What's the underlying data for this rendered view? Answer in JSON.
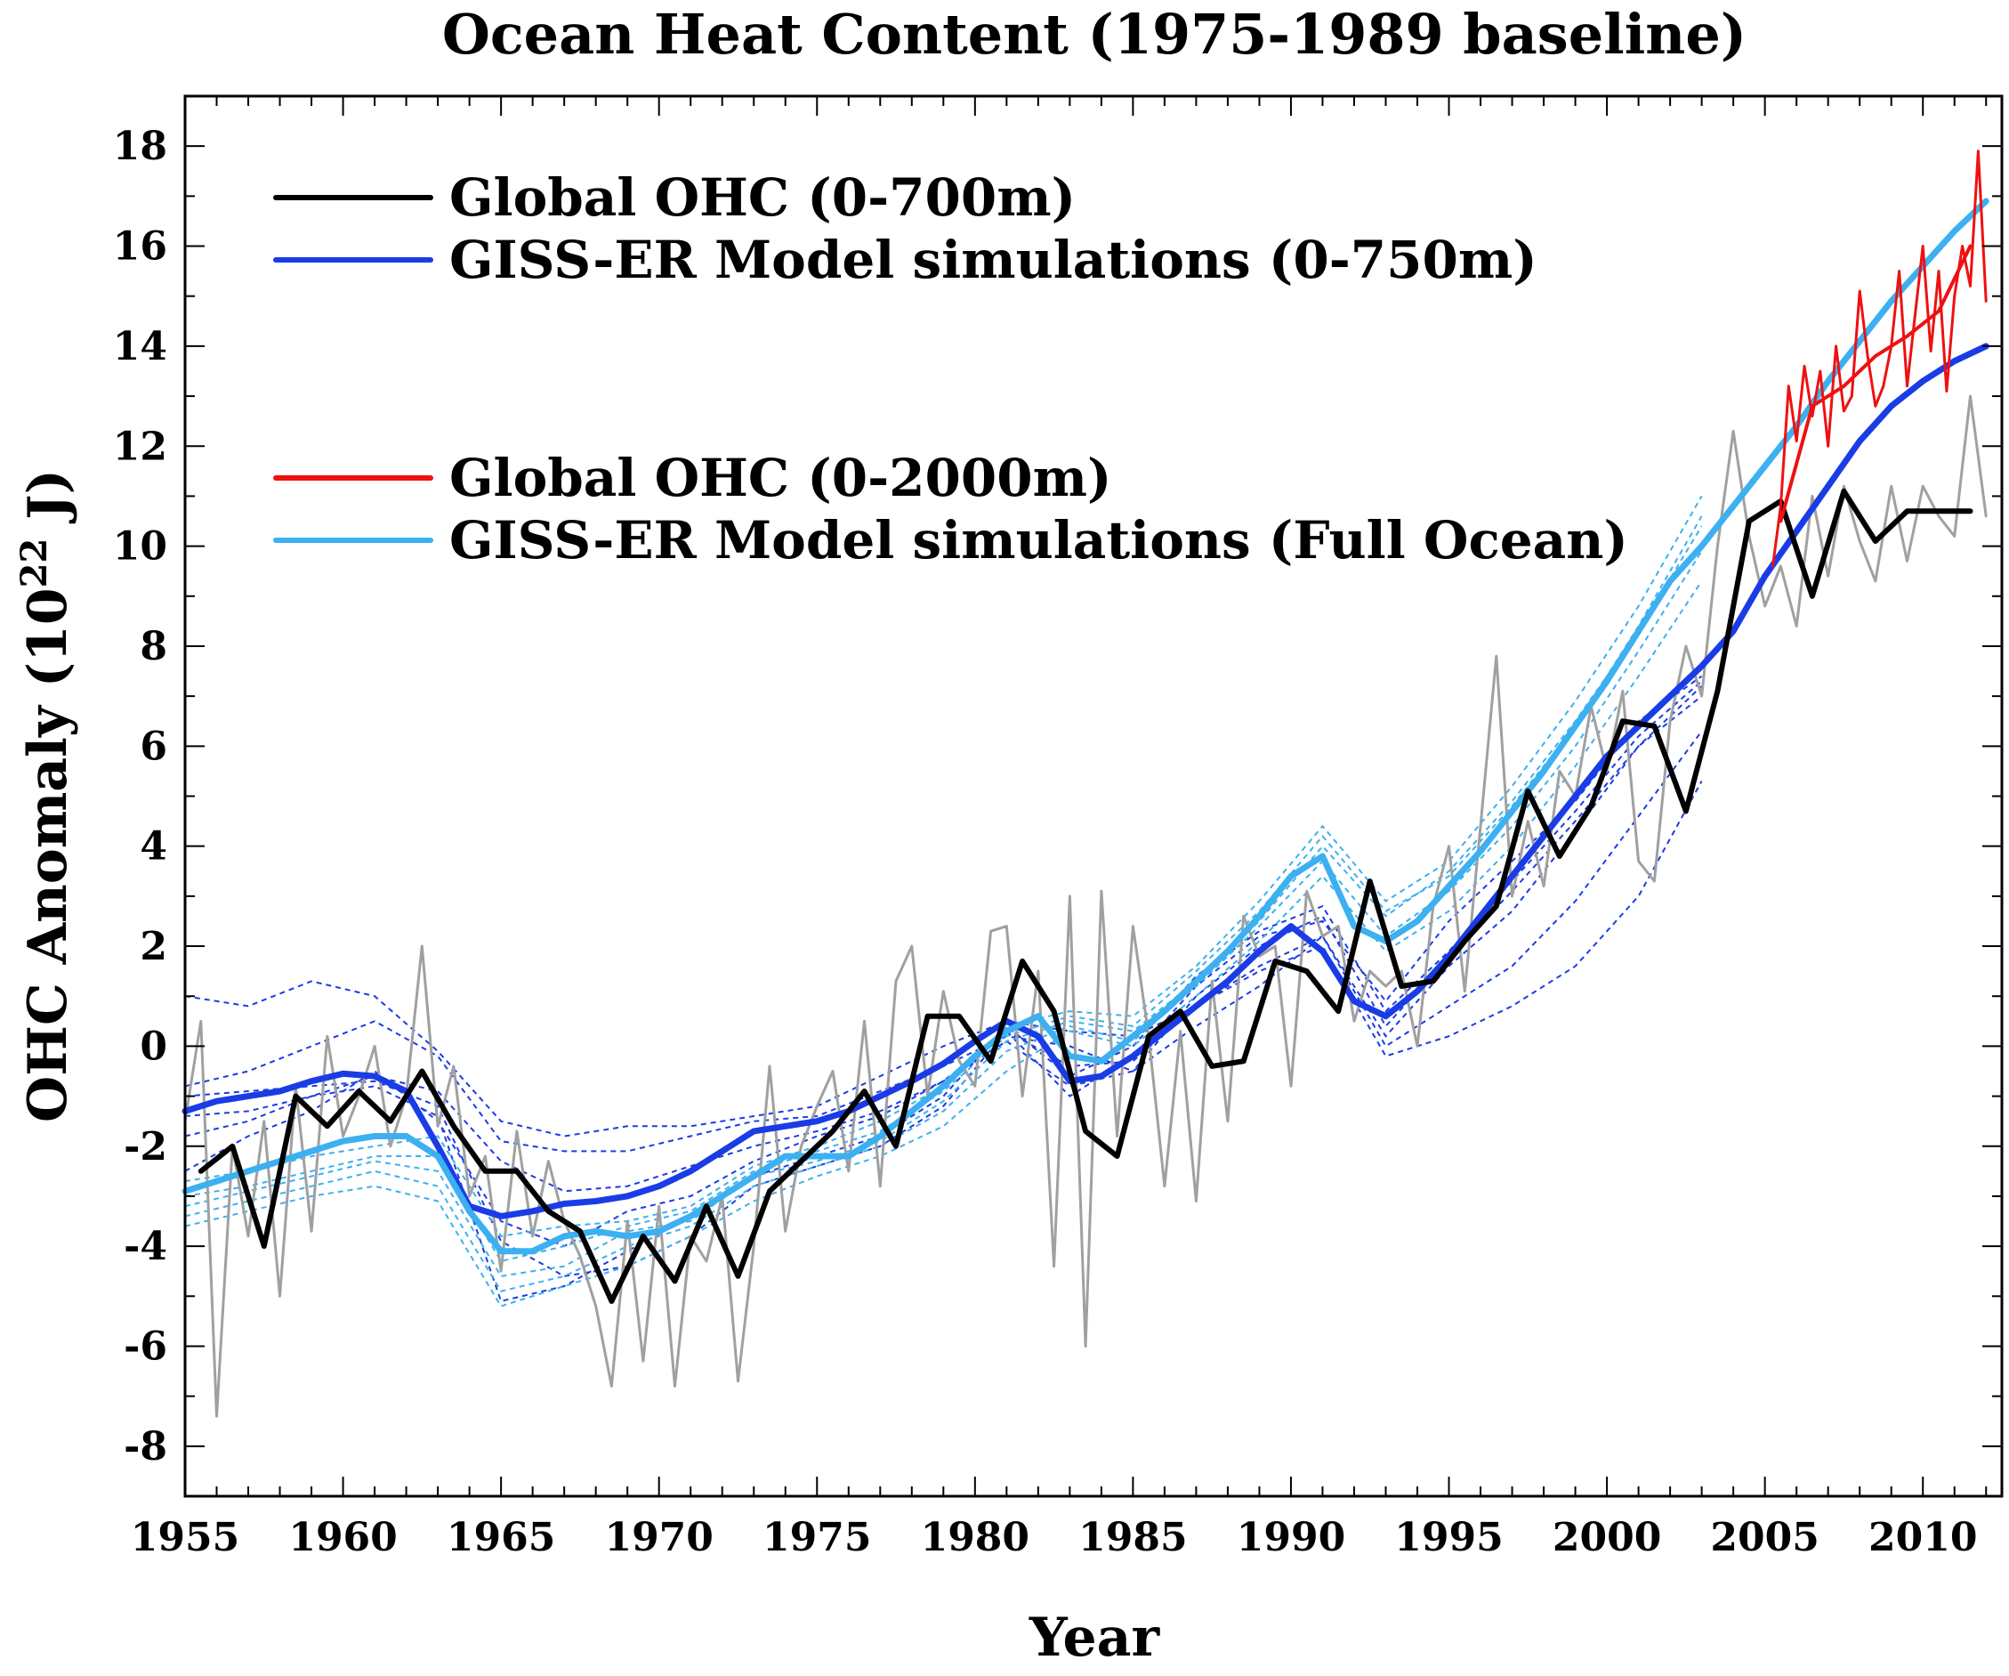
{
  "chart_data": {
    "type": "line",
    "title": "Ocean Heat Content (1975-1989 baseline)",
    "xlabel": "Year",
    "ylabel_main": "OHC Anomaly (10",
    "ylabel_sup": "22",
    "ylabel_tail": " J)",
    "xlim": [
      1955,
      2012.5
    ],
    "ylim": [
      -9,
      19
    ],
    "x_ticks": [
      1955,
      1960,
      1965,
      1970,
      1975,
      1980,
      1985,
      1990,
      1995,
      2000,
      2005,
      2010
    ],
    "y_ticks": [
      -8,
      -6,
      -4,
      -2,
      0,
      2,
      4,
      6,
      8,
      10,
      12,
      14,
      16,
      18
    ],
    "grid": false,
    "legend_placement": "top-left",
    "legend": [
      {
        "label": "Global OHC (0-700m)",
        "color": "#000000"
      },
      {
        "label": "GISS-ER Model simulations (0-750m)",
        "color": "#1a3ce6"
      },
      {
        "label": "Global OHC (0-2000m)",
        "color": "#ee1111"
      },
      {
        "label": "GISS-ER Model simulations (Full Ocean)",
        "color": "#3cb0f0"
      }
    ],
    "series": [
      {
        "legend_index": 0,
        "style": "annual",
        "color": "#000000",
        "x": [
          1955.5,
          1956.5,
          1957.5,
          1958.5,
          1959.5,
          1960.5,
          1961.5,
          1962.5,
          1963.5,
          1964.5,
          1965.5,
          1966.5,
          1967.5,
          1968.5,
          1969.5,
          1970.5,
          1971.5,
          1972.5,
          1973.5,
          1974.5,
          1975.5,
          1976.5,
          1977.5,
          1978.5,
          1979.5,
          1980.5,
          1981.5,
          1982.5,
          1983.5,
          1984.5,
          1985.5,
          1986.5,
          1987.5,
          1988.5,
          1989.5,
          1990.5,
          1991.5,
          1992.5,
          1993.5,
          1994.5,
          1995.5,
          1996.5,
          1997.5,
          1998.5,
          1999.5,
          2000.5,
          2001.5,
          2002.5,
          2003.5,
          2004.5,
          2005.5,
          2006.5,
          2007.5,
          2008.5,
          2009.5,
          2010.5,
          2011.5
        ],
        "y": [
          -2.5,
          -2.0,
          -4.0,
          -1.0,
          -1.6,
          -0.9,
          -1.5,
          -0.5,
          -1.6,
          -2.5,
          -2.5,
          -3.3,
          -3.7,
          -5.1,
          -3.8,
          -4.7,
          -3.2,
          -4.6,
          -2.9,
          -2.3,
          -1.7,
          -0.9,
          -2.0,
          0.6,
          0.6,
          -0.3,
          1.7,
          0.7,
          -1.7,
          -2.2,
          0.2,
          0.7,
          -0.4,
          -0.3,
          1.7,
          1.5,
          0.7,
          3.3,
          1.2,
          1.3,
          2.1,
          2.8,
          5.1,
          3.8,
          4.8,
          6.5,
          6.4,
          4.7,
          7.1,
          10.5,
          10.9,
          9.0,
          11.1,
          10.1,
          10.7,
          10.7,
          10.7
        ]
      },
      {
        "legend_index": 0,
        "style": "seasonal",
        "color": "#a0a0a0",
        "x": [
          1955.0,
          1955.5,
          1956.0,
          1956.5,
          1957.0,
          1957.5,
          1958.0,
          1958.5,
          1959.0,
          1959.5,
          1960.0,
          1960.5,
          1961.0,
          1961.5,
          1962.0,
          1962.5,
          1963.0,
          1963.5,
          1964.0,
          1964.5,
          1965.0,
          1965.5,
          1966.0,
          1966.5,
          1967.0,
          1967.5,
          1968.0,
          1968.5,
          1969.0,
          1969.5,
          1970.0,
          1970.5,
          1971.0,
          1971.5,
          1972.0,
          1972.5,
          1973.0,
          1973.5,
          1974.0,
          1974.5,
          1975.0,
          1975.5,
          1976.0,
          1976.5,
          1977.0,
          1977.5,
          1978.0,
          1978.5,
          1979.0,
          1979.5,
          1980.0,
          1980.5,
          1981.0,
          1981.5,
          1982.0,
          1982.5,
          1983.0,
          1983.5,
          1984.0,
          1984.5,
          1985.0,
          1985.5,
          1986.0,
          1986.5,
          1987.0,
          1987.5,
          1988.0,
          1988.5,
          1989.0,
          1989.5,
          1990.0,
          1990.5,
          1991.0,
          1991.5,
          1992.0,
          1992.5,
          1993.0,
          1993.5,
          1994.0,
          1994.5,
          1995.0,
          1995.5,
          1996.0,
          1996.5,
          1997.0,
          1997.5,
          1998.0,
          1998.5,
          1999.0,
          1999.5,
          2000.0,
          2000.5,
          2001.0,
          2001.5,
          2002.0,
          2002.5,
          2003.0,
          2003.5,
          2004.0,
          2004.5,
          2005.0,
          2005.5,
          2006.0,
          2006.5,
          2007.0,
          2007.5,
          2008.0,
          2008.5,
          2009.0,
          2009.5,
          2010.0,
          2010.5,
          2011.0,
          2011.5,
          2012.0
        ],
        "y": [
          -1.5,
          0.5,
          -7.4,
          -2.0,
          -3.8,
          -1.5,
          -5.0,
          -0.8,
          -3.7,
          0.2,
          -1.8,
          -1.0,
          0.0,
          -2.0,
          -1.0,
          2.0,
          -1.6,
          -0.4,
          -3.0,
          -2.2,
          -4.5,
          -1.7,
          -3.8,
          -2.3,
          -3.5,
          -4.2,
          -5.2,
          -6.8,
          -3.5,
          -6.3,
          -3.2,
          -6.8,
          -3.8,
          -4.3,
          -3.0,
          -6.7,
          -4.0,
          -0.4,
          -3.7,
          -2.0,
          -1.2,
          -0.5,
          -2.5,
          0.5,
          -2.8,
          1.3,
          2.0,
          -1.0,
          1.1,
          -0.3,
          -0.8,
          2.3,
          2.4,
          -1.0,
          1.5,
          -4.4,
          3.0,
          -6.0,
          3.1,
          -1.8,
          2.4,
          0.2,
          -2.8,
          0.3,
          -3.1,
          1.3,
          -1.5,
          2.6,
          1.8,
          2.0,
          -0.8,
          3.1,
          2.2,
          2.4,
          0.5,
          1.5,
          1.2,
          1.5,
          0.0,
          2.8,
          4.0,
          1.1,
          4.4,
          7.8,
          3.0,
          4.5,
          3.2,
          5.5,
          5.0,
          6.8,
          5.5,
          7.1,
          3.7,
          3.3,
          6.5,
          8.0,
          7.0,
          10.0,
          12.3,
          10.2,
          8.8,
          9.6,
          8.4,
          11.0,
          9.4,
          11.2,
          10.1,
          9.3,
          11.2,
          9.7,
          11.2,
          10.6,
          10.2,
          13.0,
          10.6
        ]
      },
      {
        "legend_index": 1,
        "style": "ensemble-mean",
        "color": "#1a3ce6",
        "x": [
          1955,
          1956,
          1957,
          1958,
          1959,
          1960,
          1961,
          1962,
          1963,
          1964,
          1965,
          1966,
          1967,
          1968,
          1969,
          1970,
          1971,
          1972,
          1973,
          1974,
          1975,
          1976,
          1977,
          1978,
          1979,
          1980,
          1981,
          1982,
          1983,
          1984,
          1985,
          1986,
          1987,
          1988,
          1989,
          1990,
          1991,
          1992,
          1993,
          1994,
          1995,
          1996,
          1997,
          1998,
          1999,
          2000,
          2001,
          2002,
          2003,
          2004,
          2005,
          2006,
          2007,
          2008,
          2009,
          2010,
          2011,
          2012
        ],
        "y": [
          -1.3,
          -1.1,
          -1.0,
          -0.9,
          -0.7,
          -0.55,
          -0.6,
          -0.9,
          -2.0,
          -3.2,
          -3.4,
          -3.3,
          -3.15,
          -3.1,
          -3.0,
          -2.8,
          -2.5,
          -2.1,
          -1.7,
          -1.6,
          -1.5,
          -1.3,
          -1.0,
          -0.7,
          -0.35,
          0.1,
          0.5,
          0.2,
          -0.7,
          -0.6,
          -0.2,
          0.3,
          0.8,
          1.3,
          1.9,
          2.4,
          1.9,
          0.9,
          0.6,
          1.1,
          1.8,
          2.6,
          3.4,
          4.2,
          5.0,
          5.8,
          6.4,
          7.0,
          7.6,
          8.3,
          9.4,
          10.3,
          11.2,
          12.1,
          12.8,
          13.3,
          13.7,
          14.0
        ]
      },
      {
        "legend_index": 3,
        "style": "ensemble-mean",
        "color": "#3cb0f0",
        "x": [
          1955,
          1956,
          1957,
          1958,
          1959,
          1960,
          1961,
          1962,
          1963,
          1964,
          1965,
          1966,
          1967,
          1968,
          1969,
          1970,
          1971,
          1972,
          1973,
          1974,
          1975,
          1976,
          1977,
          1978,
          1979,
          1980,
          1981,
          1982,
          1983,
          1984,
          1985,
          1986,
          1987,
          1988,
          1989,
          1990,
          1991,
          1992,
          1993,
          1994,
          1995,
          1996,
          1997,
          1998,
          1999,
          2000,
          2001,
          2002,
          2003,
          2004,
          2005,
          2006,
          2007,
          2008,
          2009,
          2010,
          2011,
          2012
        ],
        "y": [
          -2.9,
          -2.7,
          -2.5,
          -2.3,
          -2.1,
          -1.9,
          -1.8,
          -1.8,
          -2.2,
          -3.3,
          -4.1,
          -4.1,
          -3.8,
          -3.7,
          -3.8,
          -3.7,
          -3.4,
          -3.0,
          -2.6,
          -2.2,
          -2.2,
          -2.2,
          -1.8,
          -1.3,
          -0.8,
          -0.2,
          0.3,
          0.6,
          -0.2,
          -0.3,
          0.2,
          0.7,
          1.3,
          1.9,
          2.6,
          3.4,
          3.8,
          2.4,
          2.1,
          2.5,
          3.2,
          3.9,
          4.7,
          5.5,
          6.4,
          7.3,
          8.3,
          9.3,
          10.0,
          10.8,
          11.6,
          12.4,
          13.3,
          14.1,
          14.9,
          15.6,
          16.3,
          16.9
        ]
      },
      {
        "legend_index": 2,
        "style": "quarterly",
        "color": "#ee1111",
        "x": [
          2005.25,
          2005.5,
          2005.75,
          2006.0,
          2006.25,
          2006.5,
          2006.75,
          2007.0,
          2007.25,
          2007.5,
          2007.75,
          2008.0,
          2008.25,
          2008.5,
          2008.75,
          2009.0,
          2009.25,
          2009.5,
          2009.75,
          2010.0,
          2010.25,
          2010.5,
          2010.75,
          2011.0,
          2011.25,
          2011.5,
          2011.75,
          2012.0
        ],
        "y": [
          9.6,
          10.8,
          13.2,
          12.1,
          13.6,
          12.6,
          13.5,
          12.0,
          14.0,
          12.7,
          13.0,
          15.1,
          13.8,
          12.8,
          13.2,
          14.0,
          15.5,
          13.2,
          14.6,
          16.0,
          13.9,
          15.5,
          13.1,
          15.0,
          16.0,
          15.2,
          17.9,
          14.9
        ]
      },
      {
        "legend_index": 2,
        "style": "annual",
        "color": "#ee1111",
        "x": [
          2005.5,
          2006.5,
          2007.5,
          2008.5,
          2009.5,
          2010.5,
          2011.5
        ],
        "y": [
          10.5,
          12.8,
          13.2,
          13.8,
          14.2,
          14.7,
          16.0
        ]
      }
    ],
    "ensemble_members": {
      "x": [
        1955,
        1957,
        1959,
        1961,
        1963,
        1965,
        1967,
        1969,
        1971,
        1973,
        1975,
        1977,
        1979,
        1981,
        1983,
        1985,
        1987,
        1989,
        1991,
        1993,
        1995,
        1997,
        1999,
        2001,
        2003
      ],
      "members_0_750m": [
        [
          1.0,
          0.8,
          1.3,
          1.0,
          -0.1,
          -1.5,
          -1.8,
          -1.6,
          -1.6,
          -1.4,
          -1.2,
          -0.6,
          0.0,
          0.5,
          0.3,
          0.2,
          0.8,
          1.5,
          2.0,
          -0.2,
          0.2,
          0.8,
          1.6,
          3.0,
          5.3
        ],
        [
          -0.8,
          -0.5,
          0.0,
          0.5,
          -0.2,
          -1.9,
          -2.1,
          -2.1,
          -1.8,
          -1.5,
          -1.4,
          -0.9,
          -0.4,
          0.2,
          0.0,
          -0.5,
          0.4,
          1.2,
          2.2,
          0.0,
          0.8,
          1.6,
          2.9,
          4.6,
          6.3
        ],
        [
          -1.8,
          -1.5,
          -1.0,
          -0.6,
          -0.9,
          -2.3,
          -2.9,
          -2.8,
          -2.4,
          -2.0,
          -1.7,
          -1.3,
          -0.7,
          0.1,
          -0.8,
          -0.5,
          1.0,
          2.0,
          2.6,
          0.4,
          1.8,
          3.1,
          4.5,
          6.0,
          7.2
        ],
        [
          -2.5,
          -1.8,
          -1.3,
          -0.5,
          -1.5,
          -3.5,
          -4.0,
          -3.3,
          -3.0,
          -2.3,
          -1.8,
          -1.4,
          -0.7,
          0.3,
          -1.0,
          -0.2,
          1.2,
          2.2,
          2.5,
          0.9,
          2.5,
          3.7,
          4.9,
          6.5,
          7.4
        ],
        [
          -1.0,
          -0.9,
          -0.8,
          -0.7,
          -1.2,
          -3.9,
          -4.6,
          -4.4,
          -3.8,
          -2.8,
          -2.4,
          -2.0,
          -1.2,
          0.3,
          -0.4,
          -0.3,
          0.8,
          1.6,
          2.2,
          0.2,
          1.6,
          2.7,
          4.3,
          6.0,
          7.0
        ],
        [
          -1.4,
          -1.3,
          -1.0,
          -0.8,
          -1.4,
          -5.1,
          -4.8,
          -4.1,
          -3.4,
          -2.6,
          -2.2,
          -1.8,
          -1.0,
          0.4,
          -0.6,
          0.0,
          1.4,
          2.3,
          2.8,
          0.7,
          1.9,
          3.3,
          4.7,
          6.2,
          7.3
        ]
      ],
      "members_full_ocean": [
        [
          -3.6,
          -3.3,
          -3.0,
          -2.8,
          -3.1,
          -5.2,
          -4.8,
          -4.4,
          -3.8,
          -3.1,
          -2.6,
          -2.2,
          -1.6,
          -0.5,
          0.3,
          0.0,
          1.0,
          2.1,
          3.4,
          1.9,
          2.7,
          4.0,
          5.6,
          7.4,
          9.3
        ],
        [
          -3.2,
          -2.9,
          -2.6,
          -2.3,
          -2.5,
          -4.6,
          -4.4,
          -3.7,
          -3.5,
          -2.6,
          -2.3,
          -1.9,
          -1.1,
          0.1,
          0.5,
          0.3,
          1.3,
          2.5,
          4.0,
          2.6,
          3.5,
          4.9,
          6.5,
          8.3,
          10.4
        ],
        [
          -2.7,
          -2.5,
          -2.2,
          -2.0,
          -1.8,
          -3.8,
          -3.6,
          -3.5,
          -3.2,
          -2.4,
          -2.0,
          -1.5,
          -0.8,
          0.4,
          0.7,
          0.6,
          1.6,
          2.9,
          4.4,
          2.9,
          3.7,
          5.2,
          6.9,
          8.8,
          11.0
        ],
        [
          -3.0,
          -2.8,
          -2.5,
          -2.2,
          -2.2,
          -4.3,
          -4.0,
          -3.6,
          -3.3,
          -2.5,
          -2.1,
          -1.7,
          -0.9,
          0.2,
          0.6,
          0.4,
          1.5,
          2.7,
          4.2,
          2.7,
          3.4,
          4.8,
          6.4,
          8.4,
          10.6
        ],
        [
          -3.4,
          -3.1,
          -2.8,
          -2.5,
          -2.8,
          -4.9,
          -4.6,
          -4.0,
          -3.6,
          -2.8,
          -2.4,
          -2.0,
          -1.3,
          -0.1,
          0.4,
          0.1,
          1.2,
          2.4,
          3.7,
          2.2,
          3.1,
          4.4,
          6.0,
          7.9,
          9.9
        ]
      ]
    }
  }
}
